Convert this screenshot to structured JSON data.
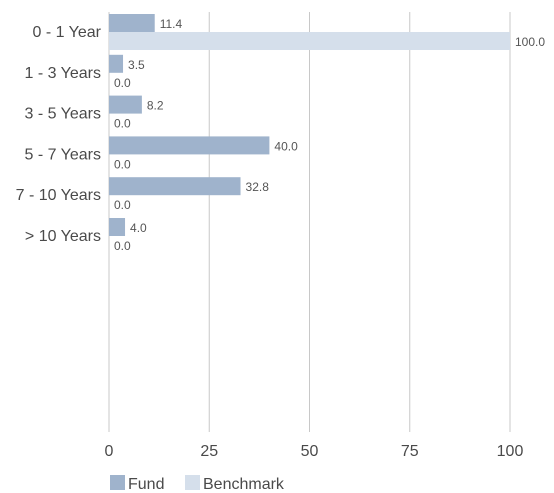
{
  "chart_data": {
    "type": "bar",
    "orientation": "horizontal",
    "categories": [
      "0 - 1 Year",
      "1 - 3 Years",
      "3 - 5 Years",
      "5 - 7 Years",
      "7 - 10 Years",
      "> 10 Years"
    ],
    "series": [
      {
        "name": "Fund",
        "values": [
          11.4,
          3.5,
          8.2,
          40.0,
          32.8,
          4.0
        ],
        "labels": [
          "11.4",
          "3.5",
          "8.2",
          "40.0",
          "32.8",
          "4.0"
        ],
        "color": "#9fb3cc"
      },
      {
        "name": "Benchmark",
        "values": [
          100.0,
          0.0,
          0.0,
          0.0,
          0.0,
          0.0
        ],
        "labels": [
          "100.0",
          "0.0",
          "0.0",
          "0.0",
          "0.0",
          "0.0"
        ],
        "color": "#d5dfeb"
      }
    ],
    "xlim": [
      0,
      100
    ],
    "xticks": [
      "0",
      "25",
      "50",
      "75",
      "100"
    ],
    "grid": "vertical",
    "legend": "bottom-left",
    "gridline_color": "#c8c8c8"
  }
}
